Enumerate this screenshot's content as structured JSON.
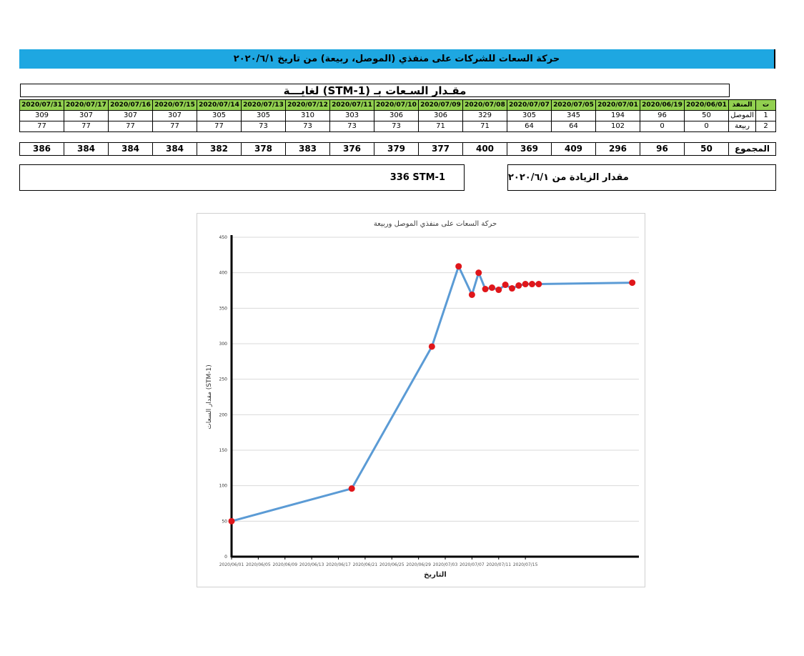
{
  "page": {
    "banner_title": "حركة السعات للشركات على منفذي (الموصل، ربيعة) من تاريخ ٢٠٢٠/٦/١",
    "subtitle": "مقـدار السـعات بـ (STM-1) لغايـــة"
  },
  "table": {
    "seq_header": "ت",
    "port_header": "المنفذ",
    "dates": [
      "2020/06/01",
      "2020/06/19",
      "2020/07/01",
      "2020/07/05",
      "2020/07/07",
      "2020/07/08",
      "2020/07/09",
      "2020/07/10",
      "2020/07/11",
      "2020/07/12",
      "2020/07/13",
      "2020/07/14",
      "2020/07/15",
      "2020/07/16",
      "2020/07/17",
      "2020/07/31"
    ],
    "rows": [
      {
        "seq": "1",
        "port": "الموصل",
        "values": [
          "50",
          "96",
          "194",
          "345",
          "305",
          "329",
          "306",
          "306",
          "303",
          "310",
          "305",
          "305",
          "307",
          "307",
          "307",
          "309"
        ]
      },
      {
        "seq": "2",
        "port": "ربيعة",
        "values": [
          "0",
          "0",
          "102",
          "64",
          "64",
          "71",
          "71",
          "73",
          "73",
          "73",
          "73",
          "77",
          "77",
          "77",
          "77",
          "77"
        ]
      }
    ],
    "total_label": "المجموع",
    "totals": [
      "50",
      "96",
      "296",
      "409",
      "369",
      "400",
      "377",
      "379",
      "376",
      "383",
      "378",
      "382",
      "384",
      "384",
      "384",
      "386"
    ]
  },
  "summary": {
    "increase_label": "مقدار الزيادة من ٢٠٢٠/٦/١",
    "increase_value": "336 STM-1"
  },
  "chart_data": {
    "type": "line",
    "title": "حركة السعات على منفذي الموصل وربيعة",
    "xlabel": "التاريخ",
    "ylabel": "مقدار السعات (STM-1)",
    "ylim": [
      0,
      450
    ],
    "yticks": [
      "0",
      "50",
      "100",
      "150",
      "200",
      "250",
      "300",
      "350",
      "400",
      "450"
    ],
    "xlim": [
      "2020/06/01",
      "2020/08/01"
    ],
    "xticks": [
      "2020/06/01",
      "2020/06/05",
      "2020/06/09",
      "2020/06/13",
      "2020/06/17",
      "2020/06/21",
      "2020/06/25",
      "2020/06/29",
      "2020/07/03",
      "2020/07/07",
      "2020/07/11",
      "2020/07/15"
    ],
    "x": [
      "2020/06/01",
      "2020/06/19",
      "2020/07/01",
      "2020/07/05",
      "2020/07/07",
      "2020/07/08",
      "2020/07/09",
      "2020/07/10",
      "2020/07/11",
      "2020/07/12",
      "2020/07/13",
      "2020/07/14",
      "2020/07/15",
      "2020/07/16",
      "2020/07/17",
      "2020/07/31"
    ],
    "values": [
      50,
      96,
      296,
      409,
      369,
      400,
      377,
      379,
      376,
      383,
      378,
      382,
      384,
      384,
      384,
      386
    ],
    "line_color": "#5b9bd5",
    "marker_color": "#e0161a",
    "grid": true
  }
}
